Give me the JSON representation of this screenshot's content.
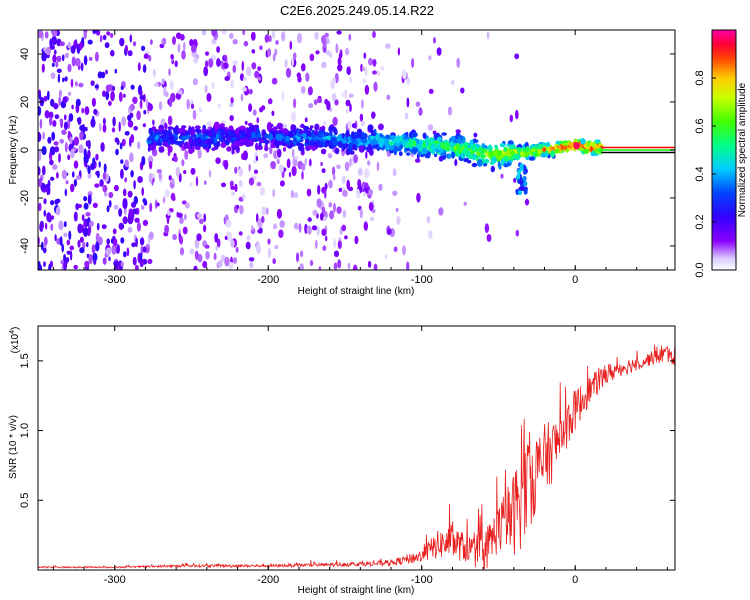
{
  "title": "C2E6.2025.249.05.14.R22",
  "chart_data": [
    {
      "type": "heatmap",
      "name": "spectrogram",
      "xlabel": "Height of straight line (km)",
      "ylabel": "Frequency (Hz)",
      "xlim": [
        -350,
        65
      ],
      "ylim": [
        -50,
        50
      ],
      "xticks": [
        -300,
        -200,
        -100,
        0
      ],
      "xtick_labels": [
        "-300",
        "-200",
        "-100",
        "0"
      ],
      "yticks": [
        -40,
        -20,
        0,
        20,
        40
      ],
      "ytick_labels": [
        "-40",
        "-20",
        "0",
        "20",
        "40"
      ],
      "colorbar": {
        "label": "Normalized spectral amplitude",
        "range": [
          0,
          1
        ],
        "ticks": [
          0.0,
          0.2,
          0.4,
          0.6,
          0.8
        ],
        "tick_labels": [
          "0.0",
          "0.2",
          "0.4",
          "0.6",
          "0.8"
        ]
      },
      "center_line": {
        "x_start": 17,
        "x_end": 65,
        "frequency": 0,
        "colors": [
          "#ff0000",
          "#00ff00",
          "#000000"
        ]
      },
      "signal_track": [
        [
          -278,
          5,
          0.35
        ],
        [
          -270,
          5,
          0.3
        ],
        [
          -262,
          5,
          0.3
        ],
        [
          -250,
          5,
          0.3
        ],
        [
          -240,
          5,
          0.35
        ],
        [
          -230,
          6,
          0.3
        ],
        [
          -220,
          5,
          0.25
        ],
        [
          -210,
          6,
          0.3
        ],
        [
          -200,
          6,
          0.3
        ],
        [
          -190,
          5,
          0.3
        ],
        [
          -180,
          5,
          0.35
        ],
        [
          -170,
          5,
          0.35
        ],
        [
          -160,
          5,
          0.4
        ],
        [
          -150,
          4,
          0.4
        ],
        [
          -140,
          4,
          0.4
        ],
        [
          -130,
          4,
          0.45
        ],
        [
          -120,
          3,
          0.45
        ],
        [
          -110,
          3,
          0.5
        ],
        [
          -100,
          2,
          0.55
        ],
        [
          -90,
          2,
          0.55
        ],
        [
          -80,
          1,
          0.6
        ],
        [
          -70,
          0,
          0.6
        ],
        [
          -60,
          -2,
          0.65
        ],
        [
          -50,
          -2,
          0.7
        ],
        [
          -40,
          -1,
          0.7
        ],
        [
          -30,
          -1,
          0.75
        ],
        [
          -20,
          0,
          0.85
        ],
        [
          -10,
          1,
          0.9
        ],
        [
          0,
          2,
          0.95
        ],
        [
          10,
          1,
          0.9
        ],
        [
          15,
          1,
          0.85
        ]
      ]
    },
    {
      "type": "line",
      "name": "snr",
      "xlabel": "Height of straight line (km)",
      "ylabel": "SNR (10 * v/v)",
      "multiplier_base": "(x10",
      "multiplier_exp": "4",
      "multiplier_close": ")",
      "xlim": [
        -350,
        65
      ],
      "ylim": [
        0,
        1.75
      ],
      "xticks": [
        -300,
        -200,
        -100,
        0
      ],
      "xtick_labels": [
        "-300",
        "-200",
        "-100",
        "0"
      ],
      "yticks": [
        0.5,
        1.0,
        1.5
      ],
      "ytick_labels": [
        "0.5",
        "1.0",
        "1.5"
      ],
      "color": "#e8201f",
      "series": [
        {
          "name": "SNR envelope",
          "x": [
            -350,
            -300,
            -250,
            -200,
            -150,
            -120,
            -100,
            -90,
            -80,
            -70,
            -60,
            -50,
            -40,
            -35,
            -30,
            -25,
            -20,
            -15,
            -10,
            -5,
            0,
            10,
            20,
            30,
            40,
            50,
            55,
            60,
            65
          ],
          "base": [
            0.02,
            0.02,
            0.03,
            0.03,
            0.04,
            0.05,
            0.1,
            0.18,
            0.2,
            0.15,
            0.12,
            0.3,
            0.4,
            0.55,
            0.65,
            0.7,
            0.8,
            0.85,
            0.95,
            1.05,
            1.15,
            1.3,
            1.4,
            1.45,
            1.48,
            1.52,
            1.55,
            1.55,
            1.5
          ],
          "spread": [
            0.01,
            0.01,
            0.02,
            0.02,
            0.03,
            0.04,
            0.1,
            0.2,
            0.25,
            0.2,
            0.3,
            0.35,
            0.6,
            0.8,
            0.7,
            0.6,
            0.5,
            0.45,
            0.4,
            0.35,
            0.3,
            0.2,
            0.15,
            0.12,
            0.1,
            0.1,
            0.15,
            0.12,
            0.08
          ]
        }
      ]
    }
  ]
}
